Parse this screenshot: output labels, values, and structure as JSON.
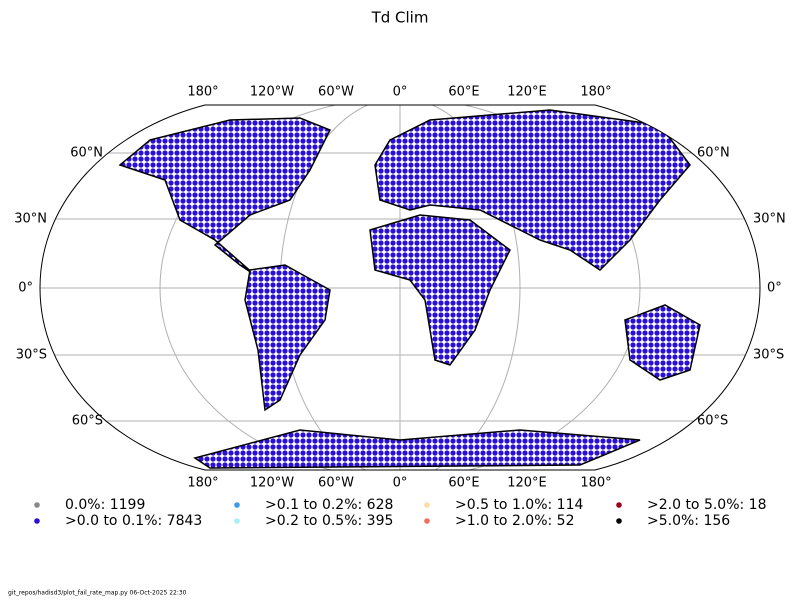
{
  "title": "Td Clim",
  "map": {
    "top_lon_labels": [
      "180°",
      "120°W",
      "60°W",
      "0°",
      "60°E",
      "120°E",
      "180°"
    ],
    "bottom_lon_labels": [
      "180°",
      "120°W",
      "60°W",
      "0°",
      "60°E",
      "120°E",
      "180°"
    ],
    "left_lat_labels": [
      "60°N",
      "30°N",
      "0°",
      "30°S",
      "60°S"
    ],
    "right_lat_labels": [
      "60°N",
      "30°N",
      "0°",
      "30°S",
      "60°S"
    ]
  },
  "legend": {
    "items": [
      {
        "label": "0.0%: 1199",
        "color": "#888888"
      },
      {
        "label": ">0.0 to 0.1%: 7843",
        "color": "#2a0fd6"
      },
      {
        "label": ">0.1 to 0.2%: 628",
        "color": "#3c9be8"
      },
      {
        "label": ">0.2 to 0.5%: 395",
        "color": "#a8f0f5"
      },
      {
        "label": ">0.5 to 1.0%: 114",
        "color": "#ffdca0"
      },
      {
        "label": ">1.0 to 2.0%: 52",
        "color": "#f46d5a"
      },
      {
        "label": ">2.0 to 5.0%: 18",
        "color": "#a00020"
      },
      {
        "label": ">5.0%: 156",
        "color": "#000000"
      }
    ]
  },
  "footer": "git_repos/hadisd3/plot_fail_rate_map.py   06-Oct-2025 22:30"
}
